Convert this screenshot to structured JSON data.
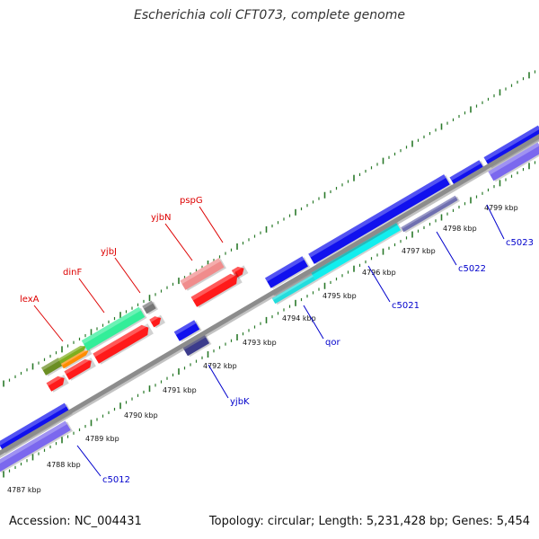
{
  "title": "Escherichia coli CFT073, complete genome",
  "footer": {
    "accession": "Accession: NC_004431",
    "summary": "Topology: circular; Length: 5,231,428 bp; Genes: 5,454"
  },
  "colors": {
    "backbone": "#888888",
    "tick": "#2a7a2a",
    "forward_label": "#dd0000",
    "reverse_label": "#0000cc",
    "ruler_label": "#111111"
  },
  "ruler": [
    {
      "label": "4787 kbp",
      "kbp": 4787
    },
    {
      "label": "4788 kbp",
      "kbp": 4788
    },
    {
      "label": "4789 kbp",
      "kbp": 4789
    },
    {
      "label": "4790 kbp",
      "kbp": 4790
    },
    {
      "label": "4791 kbp",
      "kbp": 4791
    },
    {
      "label": "4792 kbp",
      "kbp": 4792
    },
    {
      "label": "4793 kbp",
      "kbp": 4793
    },
    {
      "label": "4794 kbp",
      "kbp": 4794
    },
    {
      "label": "4795 kbp",
      "kbp": 4795
    },
    {
      "label": "4796 kbp",
      "kbp": 4796
    },
    {
      "label": "4797 kbp",
      "kbp": 4797
    },
    {
      "label": "4798 kbp",
      "kbp": 4798
    },
    {
      "label": "4799 kbp",
      "kbp": 4799
    }
  ],
  "gene_labels": [
    {
      "name": "lexA",
      "strand": "forward"
    },
    {
      "name": "dinF",
      "strand": "forward"
    },
    {
      "name": "yjbJ",
      "strand": "forward"
    },
    {
      "name": "yjbN",
      "strand": "forward"
    },
    {
      "name": "pspG",
      "strand": "forward"
    },
    {
      "name": "c5012",
      "strand": "reverse"
    },
    {
      "name": "yjbK",
      "strand": "reverse"
    },
    {
      "name": "qor",
      "strand": "reverse"
    },
    {
      "name": "c5021",
      "strand": "reverse"
    },
    {
      "name": "c5022",
      "strand": "reverse"
    },
    {
      "name": "c5023",
      "strand": "reverse"
    }
  ]
}
